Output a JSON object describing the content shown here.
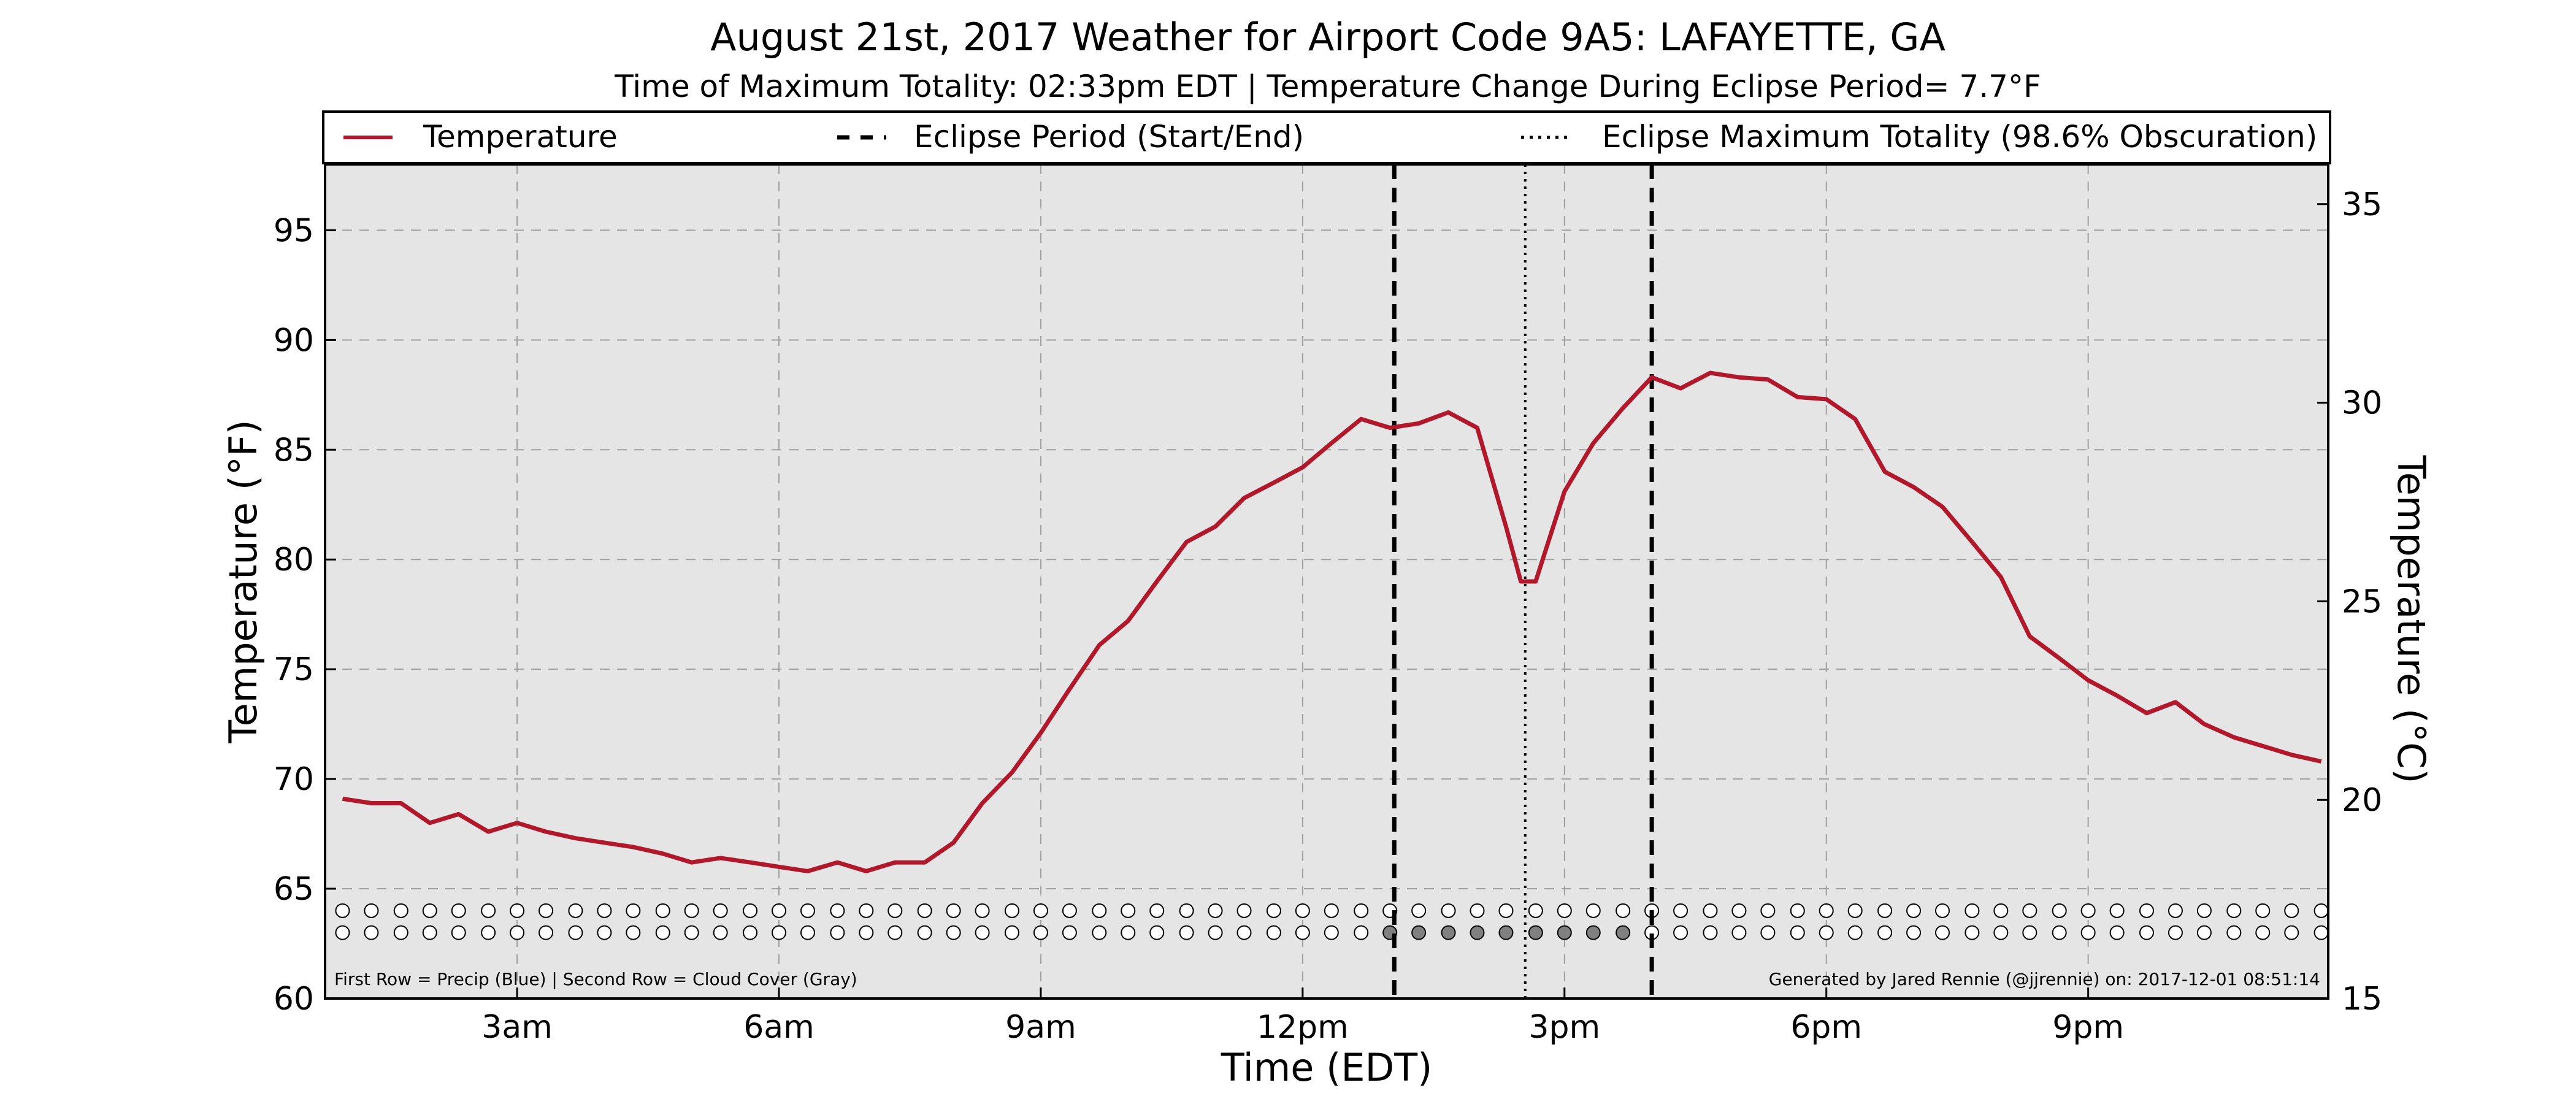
{
  "header": {
    "title": "August 21st, 2017 Weather for Airport Code 9A5: LAFAYETTE, GA",
    "subtitle": "Time of Maximum Totality: 02:33pm EDT | Temperature Change During Eclipse Period= 7.7°F"
  },
  "legend": [
    {
      "label": "Temperature",
      "style": "solid",
      "color": "#b2182b"
    },
    {
      "label": "Eclipse Period (Start/End)",
      "style": "dashed",
      "color": "#000000"
    },
    {
      "label": "Eclipse Maximum Totality (98.6% Obscuration)",
      "style": "dotted",
      "color": "#000000"
    }
  ],
  "footnotes": {
    "left": "First Row = Precip (Blue) | Second Row = Cloud Cover (Gray)",
    "right": "Generated by Jared Rennie (@jjrennie) on: 2017-12-01 08:51:14"
  },
  "colors": {
    "plot_background": "#e5e5e5",
    "temperature_line": "#b2182b",
    "cloud_cover_fill": "#808080",
    "grid": "#a0a0a0"
  },
  "chart_data": {
    "type": "line",
    "xlabel": "Time (EDT)",
    "ylabel": "Temperature (°F)",
    "ylabel_right": "Temperature (°C)",
    "x_unit": "hours since midnight EDT",
    "xlim": [
      0.8,
      23.75
    ],
    "ylim": [
      60,
      98
    ],
    "ylim_right": [
      15,
      36
    ],
    "x_ticks": [
      {
        "value": 3,
        "label": "3am"
      },
      {
        "value": 6,
        "label": "6am"
      },
      {
        "value": 9,
        "label": "9am"
      },
      {
        "value": 12,
        "label": "12pm"
      },
      {
        "value": 15,
        "label": "3pm"
      },
      {
        "value": 18,
        "label": "6pm"
      },
      {
        "value": 21,
        "label": "9pm"
      }
    ],
    "y_ticks": [
      60,
      65,
      70,
      75,
      80,
      85,
      90,
      95
    ],
    "y_ticks_right": [
      15,
      20,
      25,
      30,
      35
    ],
    "grid": true,
    "legend_position": "top",
    "eclipse_start": 13.05,
    "eclipse_end": 16.0,
    "eclipse_max": 14.55,
    "series": [
      {
        "name": "Temperature",
        "x": [
          1.0,
          1.33,
          1.67,
          2.0,
          2.33,
          2.67,
          3.0,
          3.33,
          3.67,
          4.0,
          4.33,
          4.67,
          5.0,
          5.33,
          5.67,
          6.0,
          6.33,
          6.67,
          7.0,
          7.33,
          7.67,
          8.0,
          8.33,
          8.67,
          9.0,
          9.33,
          9.67,
          10.0,
          10.33,
          10.67,
          11.0,
          11.33,
          11.67,
          12.0,
          12.33,
          12.67,
          13.0,
          13.33,
          13.67,
          14.0,
          14.33,
          14.5,
          14.67,
          15.0,
          15.33,
          15.67,
          16.0,
          16.33,
          16.67,
          17.0,
          17.33,
          17.67,
          18.0,
          18.33,
          18.67,
          19.0,
          19.33,
          19.67,
          20.0,
          20.33,
          20.67,
          21.0,
          21.33,
          21.67,
          22.0,
          22.33,
          22.67,
          23.0,
          23.33,
          23.67
        ],
        "y": [
          69.1,
          68.9,
          68.9,
          68.0,
          68.4,
          67.6,
          68.0,
          67.6,
          67.3,
          67.1,
          66.9,
          66.6,
          66.2,
          66.4,
          66.2,
          66.0,
          65.8,
          66.2,
          65.8,
          66.2,
          66.2,
          67.1,
          68.9,
          70.3,
          72.1,
          74.1,
          76.1,
          77.2,
          79.0,
          80.8,
          81.5,
          82.8,
          83.5,
          84.2,
          85.3,
          86.4,
          86.0,
          86.2,
          86.7,
          86.0,
          81.5,
          79.0,
          79.0,
          83.1,
          85.3,
          86.9,
          88.3,
          87.8,
          88.5,
          88.3,
          88.2,
          87.4,
          87.3,
          86.4,
          84.0,
          83.3,
          82.4,
          80.8,
          79.2,
          76.5,
          75.5,
          74.5,
          73.8,
          73.0,
          73.5,
          72.5,
          71.9,
          71.5,
          71.1,
          70.8
        ]
      }
    ],
    "indicator_rows": {
      "x": [
        1.0,
        1.33,
        1.67,
        2.0,
        2.33,
        2.67,
        3.0,
        3.33,
        3.67,
        4.0,
        4.33,
        4.67,
        5.0,
        5.33,
        5.67,
        6.0,
        6.33,
        6.67,
        7.0,
        7.33,
        7.67,
        8.0,
        8.33,
        8.67,
        9.0,
        9.33,
        9.67,
        10.0,
        10.33,
        10.67,
        11.0,
        11.33,
        11.67,
        12.0,
        12.33,
        12.67,
        13.0,
        13.33,
        13.67,
        14.0,
        14.33,
        14.67,
        15.0,
        15.33,
        15.67,
        16.0,
        16.33,
        16.67,
        17.0,
        17.33,
        17.67,
        18.0,
        18.33,
        18.67,
        19.0,
        19.33,
        19.67,
        20.0,
        20.33,
        20.67,
        21.0,
        21.33,
        21.67,
        22.0,
        22.33,
        22.67,
        23.0,
        23.33,
        23.67
      ],
      "precip_y": 64,
      "cloud_y": 63,
      "precip": [
        0,
        0,
        0,
        0,
        0,
        0,
        0,
        0,
        0,
        0,
        0,
        0,
        0,
        0,
        0,
        0,
        0,
        0,
        0,
        0,
        0,
        0,
        0,
        0,
        0,
        0,
        0,
        0,
        0,
        0,
        0,
        0,
        0,
        0,
        0,
        0,
        0,
        0,
        0,
        0,
        0,
        0,
        0,
        0,
        0,
        0,
        0,
        0,
        0,
        0,
        0,
        0,
        0,
        0,
        0,
        0,
        0,
        0,
        0,
        0,
        0,
        0,
        0,
        0,
        0,
        0,
        0,
        0,
        0
      ],
      "cloud": [
        0,
        0,
        0,
        0,
        0,
        0,
        0,
        0,
        0,
        0,
        0,
        0,
        0,
        0,
        0,
        0,
        0,
        0,
        0,
        0,
        0,
        0,
        0,
        0,
        0,
        0,
        0,
        0,
        0,
        0,
        0,
        0,
        0,
        0,
        0,
        0,
        1,
        1,
        1,
        1,
        1,
        1,
        1,
        1,
        1,
        0,
        0,
        0,
        0,
        0,
        0,
        0,
        0,
        0,
        0,
        0,
        0,
        0,
        0,
        0,
        0,
        0,
        0,
        0,
        0,
        0,
        0,
        0,
        0
      ]
    }
  }
}
